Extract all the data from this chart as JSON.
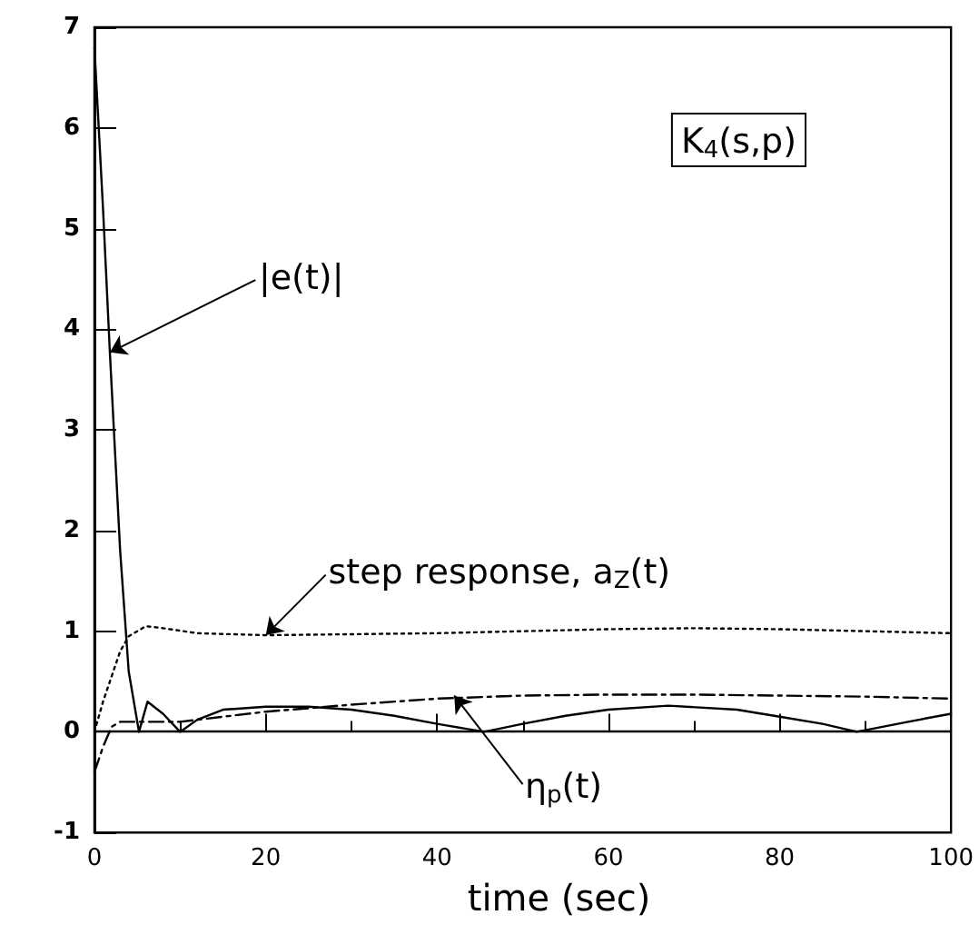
{
  "chart_data": {
    "type": "line",
    "xlabel": "time (sec)",
    "xlim": [
      0,
      100
    ],
    "xticks": [
      0,
      20,
      40,
      60,
      80,
      100
    ],
    "ylim": [
      -1,
      7
    ],
    "yticks": [
      -1,
      0,
      1,
      2,
      3,
      4,
      5,
      6,
      7
    ],
    "grid": false,
    "marker": "none",
    "series": [
      {
        "color": "#000000",
        "line_style": "solid",
        "x": [
          0,
          1,
          1.8,
          3,
          4,
          5.2,
          6.2,
          8,
          10,
          12,
          15,
          20,
          25,
          30,
          35,
          40,
          45.5,
          50,
          55,
          60,
          67,
          75,
          80,
          85,
          89,
          95,
          100
        ],
        "values": [
          6.8,
          5.2,
          3.77,
          1.8,
          0.6,
          0,
          0.3,
          0.18,
          0,
          0.12,
          0.22,
          0.25,
          0.25,
          0.22,
          0.16,
          0.08,
          0,
          0.08,
          0.16,
          0.22,
          0.26,
          0.22,
          0.15,
          0.08,
          0,
          0.1,
          0.18
        ]
      },
      {
        "color": "#000000",
        "line_style": "dotted",
        "x": [
          0,
          1,
          2,
          3,
          4,
          6,
          8,
          12,
          20,
          30,
          40,
          50,
          60,
          70,
          80,
          90,
          100
        ],
        "values": [
          0,
          0.3,
          0.55,
          0.8,
          0.95,
          1.05,
          1.03,
          0.98,
          0.96,
          0.97,
          0.98,
          1.0,
          1.02,
          1.03,
          1.02,
          1.0,
          0.98
        ]
      },
      {
        "color": "#000000",
        "line_style": "dashed",
        "x": [
          0,
          1,
          2,
          3,
          5,
          10,
          15,
          20,
          30,
          40,
          50,
          60,
          70,
          80,
          90,
          100
        ],
        "values": [
          -0.4,
          -0.15,
          0.05,
          0.1,
          0.1,
          0.1,
          0.15,
          0.2,
          0.27,
          0.33,
          0.36,
          0.37,
          0.37,
          0.36,
          0.35,
          0.33
        ]
      }
    ],
    "ref_lines": [
      {
        "axis": "y",
        "value": 0,
        "color": "#000000",
        "line_style": "solid"
      }
    ],
    "annotations": [
      {
        "text": "|e(t)|",
        "x": 1.8,
        "y": 3.77
      },
      {
        "text": "step response, a$_{Z}$(t)",
        "x": 20,
        "y": 0.96
      },
      {
        "text": "η$_{p}$(t)",
        "x": 42,
        "y": 0.36
      },
      "K$_{4}$(s,p)"
    ]
  }
}
